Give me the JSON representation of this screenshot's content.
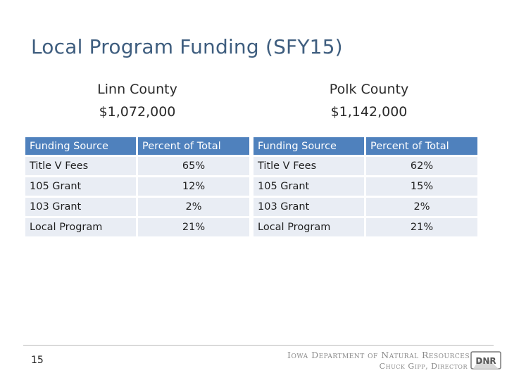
{
  "slide": {
    "title": "Local Program Funding (SFY15)",
    "page_number": "15"
  },
  "counties": [
    {
      "name": "Linn County",
      "total": "$1,072,000",
      "table": {
        "headers": [
          "Funding Source",
          "Percent of Total"
        ],
        "rows": [
          [
            "Title V Fees",
            "65%"
          ],
          [
            "105 Grant",
            "12%"
          ],
          [
            "103 Grant",
            "2%"
          ],
          [
            "Local Program",
            "21%"
          ]
        ]
      }
    },
    {
      "name": "Polk County",
      "total": "$1,142,000",
      "table": {
        "headers": [
          "Funding Source",
          "Percent of Total"
        ],
        "rows": [
          [
            "Title V Fees",
            "62%"
          ],
          [
            "105 Grant",
            "15%"
          ],
          [
            "103 Grant",
            "2%"
          ],
          [
            "Local Program",
            "21%"
          ]
        ]
      }
    }
  ],
  "footer": {
    "department": "Iowa Department of Natural Resources",
    "director": "Chuck Gipp, Director",
    "logo_text": "DNR",
    "logo_icon": "dnr-logo-icon"
  },
  "colors": {
    "title": "#3f5e7f",
    "header_fill": "#4f81bd",
    "row_fill": "#e9edf4"
  }
}
